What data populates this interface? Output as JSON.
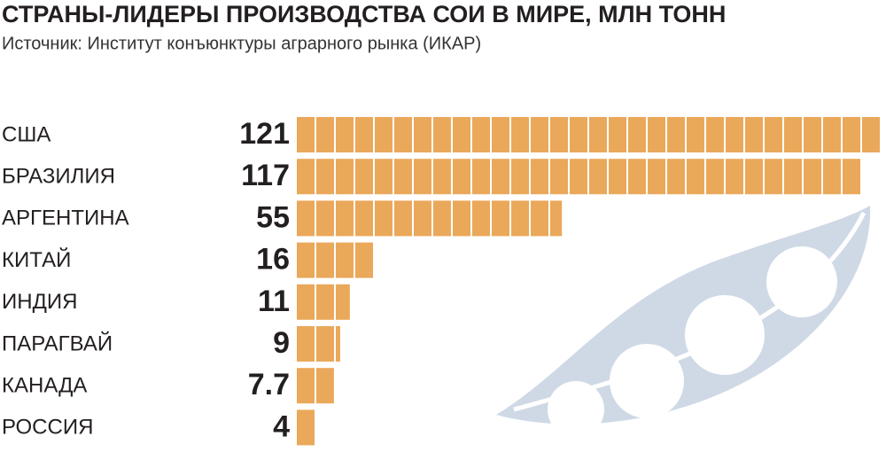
{
  "chart_data": {
    "type": "bar",
    "orientation": "horizontal",
    "title": "СТРАНЫ-ЛИДЕРЫ ПРОИЗВОДСТВА СОИ В МИРЕ, МЛН ТОНН",
    "subtitle": "Источник: Институт конъюнктуры аграрного рынка (ИКАР)",
    "categories": [
      "США",
      "БРАЗИЛИЯ",
      "АРГЕНТИНА",
      "КИТАЙ",
      "ИНДИЯ",
      "ПАРАГВАЙ",
      "КАНАДА",
      "РОССИЯ"
    ],
    "values": [
      121,
      117,
      55,
      16,
      11,
      9,
      7.7,
      4
    ],
    "color": "#eaa85a"
  }
}
